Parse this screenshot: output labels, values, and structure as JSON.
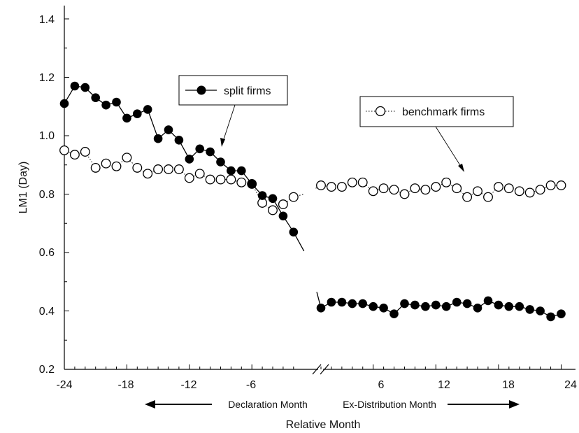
{
  "chart_data": {
    "type": "line",
    "title": "",
    "xlabel": "Relative Month",
    "ylabel": "LM1 (Day)",
    "xlim": [
      -24,
      24
    ],
    "ylim": [
      0.2,
      1.45
    ],
    "x_tick_labels": [
      "-24",
      "-18",
      "-12",
      "-6",
      "6",
      "12",
      "18",
      "24"
    ],
    "y_tick_labels": [
      "0.2",
      "0.4",
      "0.6",
      "0.8",
      "1.0",
      "1.2",
      "1.4"
    ],
    "axis_break": "between -1 and 1",
    "region_labels": {
      "declaration": "Declaration Month",
      "ex_distribution": "Ex-Distribution Month"
    },
    "legend": {
      "placement": "annotations with arrows"
    },
    "series": [
      {
        "name": "split firms",
        "marker": "filled-circle",
        "line": "solid",
        "color": "#000000",
        "pre": {
          "x": [
            -24,
            -23,
            -22,
            -21,
            -20,
            -19,
            -18,
            -17,
            -16,
            -15,
            -14,
            -13,
            -12,
            -11,
            -10,
            -9,
            -8,
            -7,
            -6,
            -5,
            -4,
            -3,
            -2
          ],
          "y": [
            1.11,
            1.17,
            1.165,
            1.13,
            1.105,
            1.115,
            1.06,
            1.075,
            1.09,
            0.99,
            1.02,
            0.985,
            0.92,
            0.955,
            0.945,
            0.91,
            0.88,
            0.88,
            0.835,
            0.795,
            0.785,
            0.725,
            0.67
          ]
        },
        "post": {
          "x": [
            1,
            2,
            3,
            4,
            5,
            6,
            7,
            8,
            9,
            10,
            11,
            12,
            13,
            14,
            15,
            16,
            17,
            18,
            19,
            20,
            21,
            22,
            23,
            24
          ],
          "y": [
            0.41,
            0.43,
            0.43,
            0.425,
            0.425,
            0.415,
            0.41,
            0.39,
            0.425,
            0.42,
            0.415,
            0.42,
            0.415,
            0.43,
            0.425,
            0.41,
            0.435,
            0.42,
            0.415,
            0.415,
            0.405,
            0.4,
            0.38,
            0.39
          ]
        }
      },
      {
        "name": "benchmark firms",
        "marker": "open-circle",
        "line": "dotted",
        "color": "#000000",
        "pre": {
          "x": [
            -24,
            -23,
            -22,
            -21,
            -20,
            -19,
            -18,
            -17,
            -16,
            -15,
            -14,
            -13,
            -12,
            -11,
            -10,
            -9,
            -8,
            -7,
            -6,
            -5,
            -4,
            -3,
            -2
          ],
          "y": [
            0.95,
            0.935,
            0.945,
            0.89,
            0.905,
            0.895,
            0.925,
            0.89,
            0.87,
            0.885,
            0.885,
            0.885,
            0.855,
            0.87,
            0.85,
            0.85,
            0.85,
            0.84,
            0.835,
            0.77,
            0.745,
            0.765,
            0.79
          ]
        },
        "post": {
          "x": [
            1,
            2,
            3,
            4,
            5,
            6,
            7,
            8,
            9,
            10,
            11,
            12,
            13,
            14,
            15,
            16,
            17,
            18,
            19,
            20,
            21,
            22,
            23,
            24
          ],
          "y": [
            0.83,
            0.825,
            0.825,
            0.84,
            0.84,
            0.81,
            0.82,
            0.815,
            0.8,
            0.82,
            0.815,
            0.825,
            0.84,
            0.82,
            0.79,
            0.81,
            0.79,
            0.825,
            0.82,
            0.81,
            0.805,
            0.815,
            0.83,
            0.83
          ]
        }
      }
    ]
  }
}
